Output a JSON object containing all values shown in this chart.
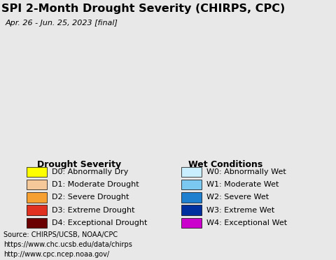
{
  "title": "SPI 2-Month Drought Severity (CHIRPS, CPC)",
  "subtitle": "Apr. 26 - Jun. 25, 2023 [final]",
  "source_lines": [
    "Source: CHIRPS/UCSB, NOAA/CPC",
    "https://www.chc.ucsb.edu/data/chirps",
    "http://www.cpc.ncep.noaa.gov/"
  ],
  "drought_labels": [
    "D0: Abnormally Dry",
    "D1: Moderate Drought",
    "D2: Severe Drought",
    "D3: Extreme Drought",
    "D4: Exceptional Drought"
  ],
  "drought_colors": [
    "#FFFF00",
    "#F5C89A",
    "#F5A030",
    "#E03020",
    "#6B0000"
  ],
  "wet_labels": [
    "W0: Abnormally Wet",
    "W1: Moderate Wet",
    "W2: Severe Wet",
    "W3: Extreme Wet",
    "W4: Exceptional Wet"
  ],
  "wet_colors": [
    "#C8EEFF",
    "#7BC8F0",
    "#2080D0",
    "#0030A0",
    "#CC00CC"
  ],
  "ocean_color": "#A8E0F0",
  "legend_bg": "#E8E8E8",
  "title_fontsize": 11.5,
  "subtitle_fontsize": 8,
  "legend_title_fontsize": 9,
  "legend_fontsize": 8,
  "source_fontsize": 7
}
